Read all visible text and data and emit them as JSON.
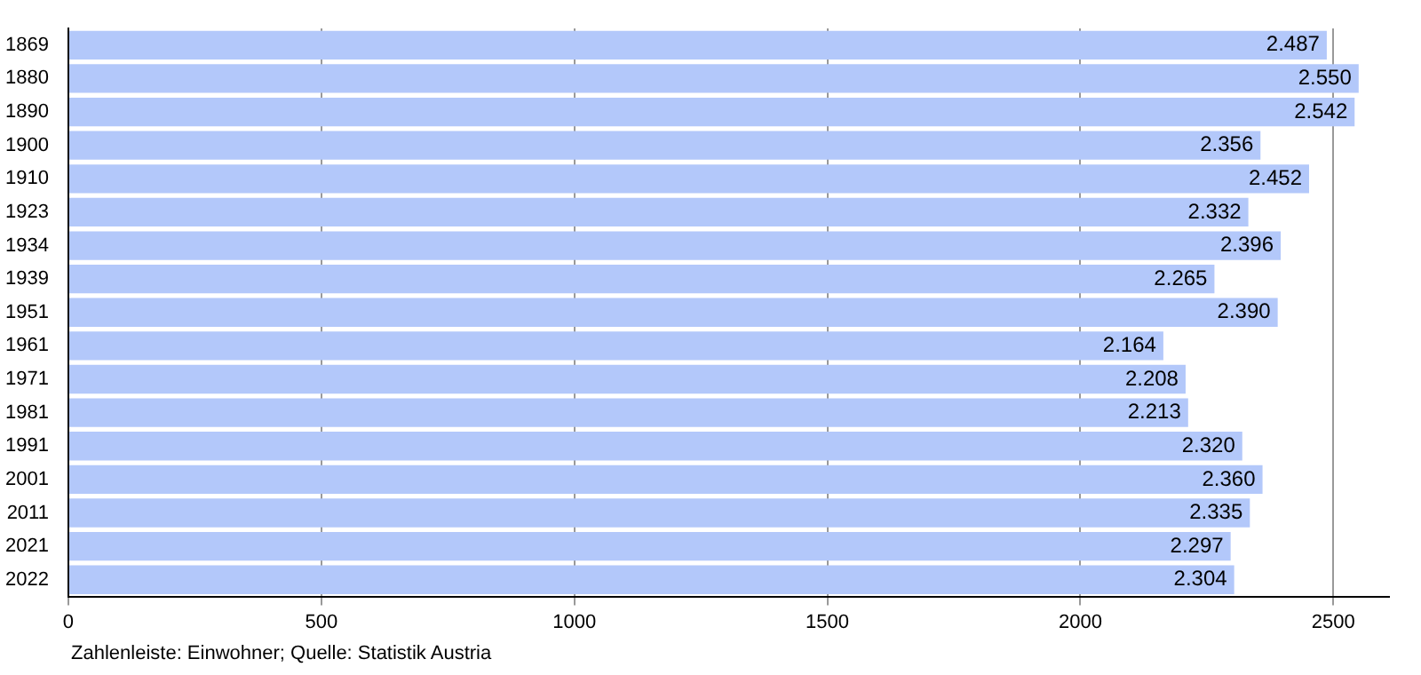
{
  "chart_data": {
    "type": "bar",
    "orientation": "horizontal",
    "categories": [
      "1869",
      "1880",
      "1890",
      "1900",
      "1910",
      "1923",
      "1934",
      "1939",
      "1951",
      "1961",
      "1971",
      "1981",
      "1991",
      "2001",
      "2011",
      "2021",
      "2022"
    ],
    "series": [
      {
        "color": "#b3c8fa",
        "values": [
          2487,
          2550,
          2542,
          2356,
          2452,
          2332,
          2396,
          2265,
          2390,
          2164,
          2208,
          2213,
          2320,
          2360,
          2335,
          2297,
          2304
        ],
        "value_labels": [
          "2.487",
          "2.550",
          "2.542",
          "2.356",
          "2.452",
          "2.332",
          "2.396",
          "2.265",
          "2.390",
          "2.164",
          "2.208",
          "2.213",
          "2.320",
          "2.360",
          "2.335",
          "2.297",
          "2.304"
        ]
      }
    ],
    "xlim": [
      0,
      2610
    ],
    "xticks": [
      0,
      500,
      1000,
      1500,
      2000,
      2500
    ],
    "grid": "x",
    "legend": false,
    "annotations": [
      "Zahlenleiste: Einwohner; Quelle: Statistik Austria"
    ]
  }
}
